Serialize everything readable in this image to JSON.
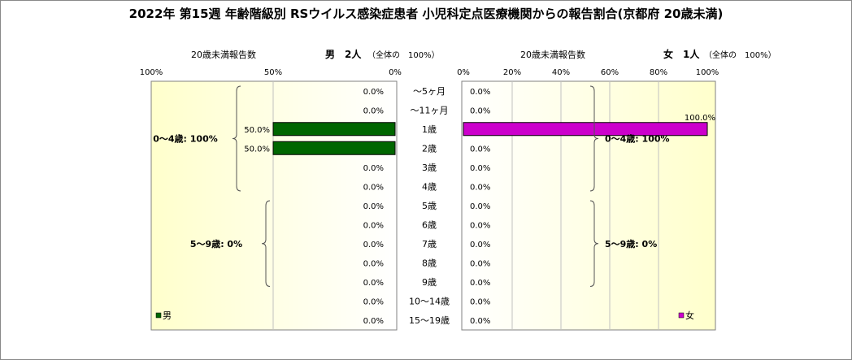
{
  "chart_data": {
    "type": "bar",
    "title": "2022年 第15週 年齢階級別 RSウイルス感染症患者 小児科定点医療機関からの報告割合(京都府 20歳未満)",
    "categories": [
      "～5ヶ月",
      "～11ヶ月",
      "1歳",
      "2歳",
      "3歳",
      "4歳",
      "5歳",
      "6歳",
      "7歳",
      "8歳",
      "9歳",
      "10～14歳",
      "15～19歳"
    ],
    "left_panel": {
      "header_label": "20歳未満報告数",
      "sex_header": "男　2人",
      "total_note": "（全体の　100%）",
      "ticks": [
        "100%",
        "50%",
        "0%"
      ],
      "xlim": [
        100,
        0
      ],
      "series": [
        {
          "name": "男",
          "color": "#006600",
          "values": [
            0,
            0,
            50,
            50,
            0,
            0,
            0,
            0,
            0,
            0,
            0,
            0,
            0
          ]
        }
      ],
      "value_labels": [
        "0.0%",
        "0.0%",
        "50.0%",
        "50.0%",
        "0.0%",
        "0.0%",
        "0.0%",
        "0.0%",
        "0.0%",
        "0.0%",
        "0.0%",
        "0.0%",
        "0.0%"
      ],
      "legend": "男",
      "group_labels": [
        {
          "text": "0～4歳: 100%",
          "from": 0,
          "to": 5
        },
        {
          "text": "5～9歳: 0%",
          "from": 6,
          "to": 10
        }
      ]
    },
    "right_panel": {
      "header_label": "20歳未満報告数",
      "sex_header": "女　1人",
      "total_note": "（全体の　100%）",
      "ticks": [
        "0%",
        "20%",
        "40%",
        "60%",
        "80%",
        "100%"
      ],
      "xlim": [
        0,
        100
      ],
      "series": [
        {
          "name": "女",
          "color": "#cc00cc",
          "values": [
            0,
            0,
            100,
            0,
            0,
            0,
            0,
            0,
            0,
            0,
            0,
            0,
            0
          ]
        }
      ],
      "value_labels": [
        "0.0%",
        "0.0%",
        "100.0%",
        "0.0%",
        "0.0%",
        "0.0%",
        "0.0%",
        "0.0%",
        "0.0%",
        "0.0%",
        "0.0%",
        "0.0%",
        "0.0%"
      ],
      "legend": "女",
      "group_labels": [
        {
          "text": "0～4歳: 100%",
          "from": 0,
          "to": 5
        },
        {
          "text": "5～9歳: 0%",
          "from": 6,
          "to": 10
        }
      ]
    },
    "colors": {
      "plot_bg_light": "#ffffff",
      "plot_bg_yellow": "#ffffcc",
      "grid": "#c0c0c0"
    }
  }
}
